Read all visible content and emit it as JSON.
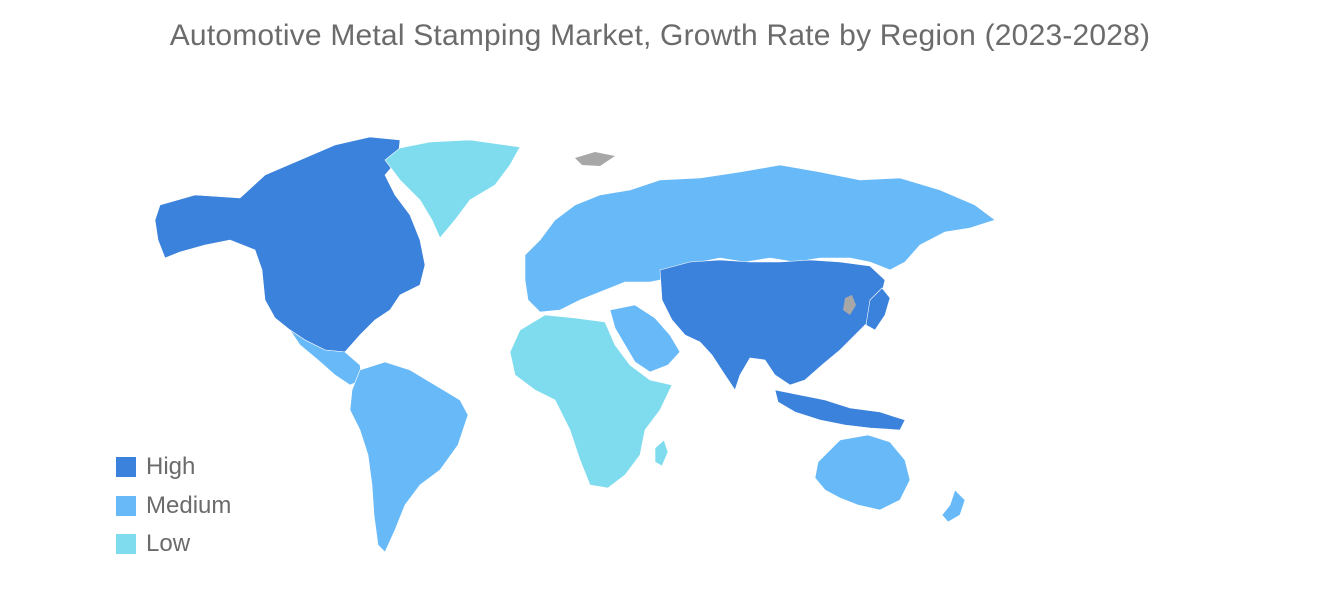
{
  "title": "Automotive Metal Stamping Market, Growth Rate by Region (2023-2028)",
  "colors": {
    "high": "#3b82dc",
    "medium": "#68b9f7",
    "low": "#7fdcef",
    "no_data": "#a7a7a7"
  },
  "legend": [
    {
      "label": "High",
      "level": "high"
    },
    {
      "label": "Medium",
      "level": "medium"
    },
    {
      "label": "Low",
      "level": "low"
    }
  ],
  "regions": [
    {
      "name": "north-america",
      "level": "high"
    },
    {
      "name": "asia-pacific",
      "level": "high"
    },
    {
      "name": "south-america",
      "level": "medium"
    },
    {
      "name": "europe-russia",
      "level": "medium"
    },
    {
      "name": "middle-east",
      "level": "medium"
    },
    {
      "name": "australia",
      "level": "medium"
    },
    {
      "name": "africa",
      "level": "low"
    },
    {
      "name": "greenland",
      "level": "low"
    }
  ]
}
